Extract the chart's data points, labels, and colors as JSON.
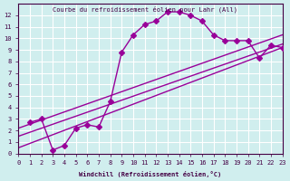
{
  "title": "Courbe du refroidissement éolien pour Lahr (All)",
  "xlabel": "Windchill (Refroidissement éolien,°C)",
  "ylabel": "",
  "bg_color": "#d0eeee",
  "line_color": "#990099",
  "grid_color": "#ffffff",
  "xlim": [
    0,
    23
  ],
  "ylim": [
    0,
    13
  ],
  "xticks": [
    0,
    1,
    2,
    3,
    4,
    5,
    6,
    7,
    8,
    9,
    10,
    11,
    12,
    13,
    14,
    15,
    16,
    17,
    18,
    19,
    20,
    21,
    22,
    23
  ],
  "yticks": [
    0,
    1,
    2,
    3,
    4,
    5,
    6,
    7,
    8,
    9,
    10,
    11,
    12
  ],
  "curve1_x": [
    1,
    2,
    3,
    4,
    5,
    6,
    7,
    8,
    9,
    10,
    11,
    12,
    13,
    14,
    15,
    16,
    17,
    18,
    19,
    20,
    21,
    22,
    23
  ],
  "curve1_y": [
    2.7,
    3.0,
    0.3,
    0.7,
    2.2,
    2.5,
    2.3,
    4.5,
    8.8,
    10.3,
    11.2,
    11.5,
    12.3,
    12.3,
    12.0,
    11.5,
    10.3,
    9.8,
    9.8,
    9.8,
    8.3,
    9.4,
    9.2
  ],
  "line2_x": [
    0,
    23
  ],
  "line2_y": [
    0.5,
    9.2
  ],
  "line3_x": [
    0,
    23
  ],
  "line3_y": [
    1.5,
    9.5
  ],
  "line4_x": [
    0,
    23
  ],
  "line4_y": [
    2.2,
    10.3
  ],
  "marker": "D",
  "markersize": 3,
  "linewidth": 1.0
}
